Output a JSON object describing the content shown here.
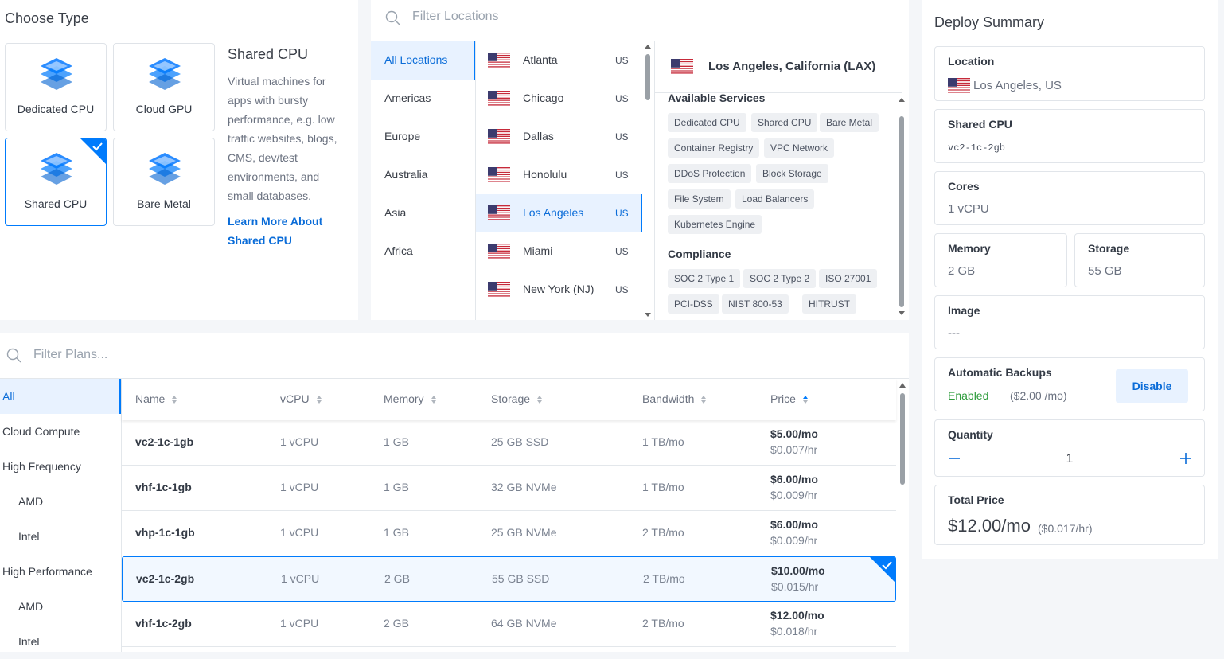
{
  "choose_type": {
    "title": "Choose Type",
    "options": [
      "Dedicated CPU",
      "Cloud GPU",
      "Shared CPU",
      "Bare Metal"
    ],
    "selected": {
      "title": "Shared CPU",
      "description": "Virtual machines for apps with bursty performance, e.g. low traffic websites, blogs, CMS, dev/test environments, and small databases.",
      "link": "Learn More About Shared CPU"
    }
  },
  "locations": {
    "filter": "Filter Locations",
    "regions": [
      "All Locations",
      "Americas",
      "Europe",
      "Australia",
      "Asia",
      "Africa"
    ],
    "cities": [
      {
        "name": "Atlanta",
        "country": "US"
      },
      {
        "name": "Chicago",
        "country": "US"
      },
      {
        "name": "Dallas",
        "country": "US"
      },
      {
        "name": "Honolulu",
        "country": "US"
      },
      {
        "name": "Los Angeles",
        "country": "US"
      },
      {
        "name": "Miami",
        "country": "US"
      },
      {
        "name": "New York (NJ)",
        "country": "US"
      }
    ],
    "detail": {
      "title": "Los Angeles, California (LAX)",
      "services_heading": "Available Services",
      "services": [
        [
          "Dedicated CPU",
          "Shared CPU",
          "Bare Metal"
        ],
        [
          "Container Registry",
          "VPC Network"
        ],
        [
          "DDoS Protection",
          "Block Storage"
        ],
        [
          "File System",
          "Load Balancers"
        ],
        [
          "Kubernetes Engine"
        ]
      ],
      "compliance_heading": "Compliance",
      "compliance": [
        [
          "SOC 2 Type 1",
          "SOC 2 Type 2",
          "ISO 27001"
        ],
        [
          "PCI-DSS",
          "NIST 800-53",
          "HITRUST"
        ]
      ]
    }
  },
  "plans": {
    "filter": "Filter Plans...",
    "categories": [
      {
        "label": "All"
      },
      {
        "label": "Cloud Compute"
      },
      {
        "label": "High Frequency",
        "children": [
          "AMD",
          "Intel"
        ]
      },
      {
        "label": "High Performance",
        "children": [
          "AMD",
          "Intel"
        ]
      }
    ],
    "columns": [
      "Name",
      "vCPU",
      "Memory",
      "Storage",
      "Bandwidth",
      "Price"
    ],
    "rows": [
      {
        "name": "vc2-1c-1gb",
        "vcpu": "1 vCPU",
        "memory": "1 GB",
        "storage": "25 GB SSD",
        "bandwidth": "1 TB/mo",
        "price": "$5.00/mo",
        "hourly": "$0.007/hr"
      },
      {
        "name": "vhf-1c-1gb",
        "vcpu": "1 vCPU",
        "memory": "1 GB",
        "storage": "32 GB NVMe",
        "bandwidth": "1 TB/mo",
        "price": "$6.00/mo",
        "hourly": "$0.009/hr"
      },
      {
        "name": "vhp-1c-1gb",
        "vcpu": "1 vCPU",
        "memory": "1 GB",
        "storage": "25 GB NVMe",
        "bandwidth": "2 TB/mo",
        "price": "$6.00/mo",
        "hourly": "$0.009/hr"
      },
      {
        "name": "vc2-1c-2gb",
        "vcpu": "1 vCPU",
        "memory": "2 GB",
        "storage": "55 GB SSD",
        "bandwidth": "2 TB/mo",
        "price": "$10.00/mo",
        "hourly": "$0.015/hr"
      },
      {
        "name": "vhf-1c-2gb",
        "vcpu": "1 vCPU",
        "memory": "2 GB",
        "storage": "64 GB NVMe",
        "bandwidth": "2 TB/mo",
        "price": "$12.00/mo",
        "hourly": "$0.018/hr"
      }
    ]
  },
  "summary": {
    "title": "Deploy Summary",
    "location": {
      "label": "Location",
      "value": "Los Angeles, US"
    },
    "plan": {
      "label": "Shared CPU",
      "value": "vc2-1c-2gb"
    },
    "cores": {
      "label": "Cores",
      "value": "1 vCPU"
    },
    "memory": {
      "label": "Memory",
      "value": "2 GB"
    },
    "storage": {
      "label": "Storage",
      "value": "55 GB"
    },
    "image": {
      "label": "Image",
      "value": "---"
    },
    "backups": {
      "label": "Automatic Backups",
      "status": "Enabled",
      "price": "($2.00 /mo)",
      "button": "Disable"
    },
    "quantity": {
      "label": "Quantity",
      "value": 1
    },
    "total": {
      "label": "Total Price",
      "value": "$12.00/mo",
      "hourly": "($0.017/hr)"
    }
  }
}
